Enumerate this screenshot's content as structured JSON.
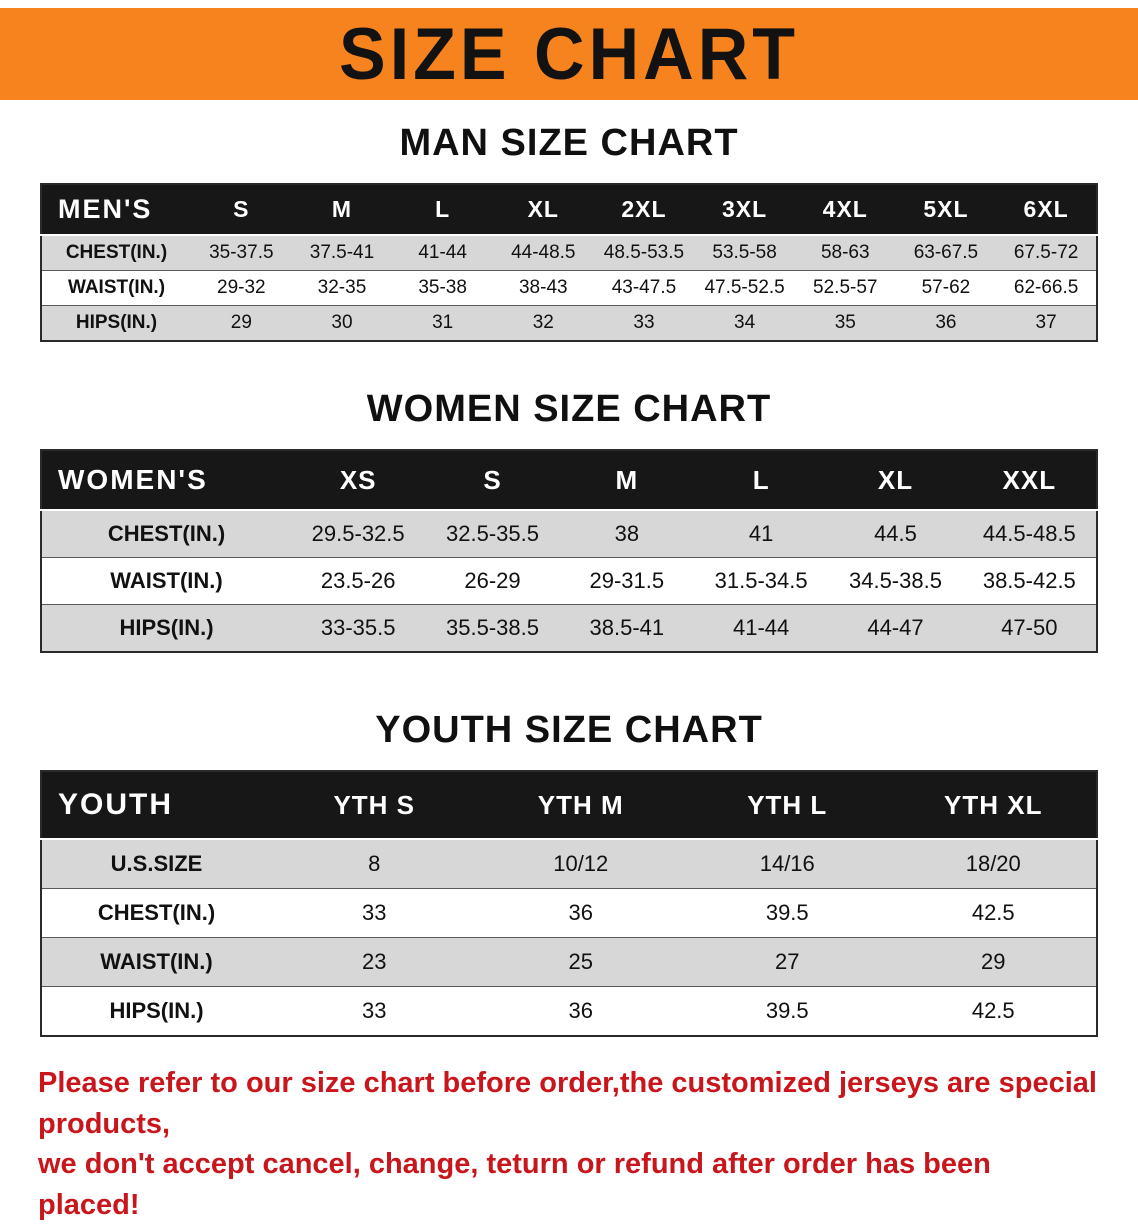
{
  "colors": {
    "banner_bg": "#F6831D",
    "banner_text": "#121212",
    "table_header_bg": "#171717",
    "table_header_text": "#FFFFFF",
    "row_stripe": "#D7D7D7",
    "disclaimer_text": "#C9161C"
  },
  "banner": {
    "title": "SIZE CHART"
  },
  "sections": [
    {
      "heading": "MAN SIZE CHART",
      "table": {
        "header": [
          "MEN'S",
          "S",
          "M",
          "L",
          "XL",
          "2XL",
          "3XL",
          "4XL",
          "5XL",
          "6XL"
        ],
        "rows": [
          [
            "CHEST(IN.)",
            "35-37.5",
            "37.5-41",
            "41-44",
            "44-48.5",
            "48.5-53.5",
            "53.5-58",
            "58-63",
            "63-67.5",
            "67.5-72"
          ],
          [
            "WAIST(IN.)",
            "29-32",
            "32-35",
            "35-38",
            "38-43",
            "43-47.5",
            "47.5-52.5",
            "52.5-57",
            "57-62",
            "62-66.5"
          ],
          [
            "HIPS(IN.)",
            "29",
            "30",
            "31",
            "32",
            "33",
            "34",
            "35",
            "36",
            "37"
          ]
        ]
      }
    },
    {
      "heading": "WOMEN SIZE CHART",
      "table": {
        "header": [
          "WOMEN'S",
          "XS",
          "S",
          "M",
          "L",
          "XL",
          "XXL"
        ],
        "rows": [
          [
            "CHEST(IN.)",
            "29.5-32.5",
            "32.5-35.5",
            "38",
            "41",
            "44.5",
            "44.5-48.5"
          ],
          [
            "WAIST(IN.)",
            "23.5-26",
            "26-29",
            "29-31.5",
            "31.5-34.5",
            "34.5-38.5",
            "38.5-42.5"
          ],
          [
            "HIPS(IN.)",
            "33-35.5",
            "35.5-38.5",
            "38.5-41",
            "41-44",
            "44-47",
            "47-50"
          ]
        ]
      }
    },
    {
      "heading": "YOUTH SIZE CHART",
      "table": {
        "header": [
          "YOUTH",
          "YTH S",
          "YTH M",
          "YTH L",
          "YTH XL"
        ],
        "rows": [
          [
            "U.S.SIZE",
            "8",
            "10/12",
            "14/16",
            "18/20"
          ],
          [
            "CHEST(IN.)",
            "33",
            "36",
            "39.5",
            "42.5"
          ],
          [
            "WAIST(IN.)",
            "23",
            "25",
            "27",
            "29"
          ],
          [
            "HIPS(IN.)",
            "33",
            "36",
            "39.5",
            "42.5"
          ]
        ]
      }
    }
  ],
  "disclaimer": {
    "line1": "Please refer to our size chart before order,the customized jerseys are special products,",
    "line2": "we don't accept cancel, change, teturn or refund after order has been placed!"
  }
}
